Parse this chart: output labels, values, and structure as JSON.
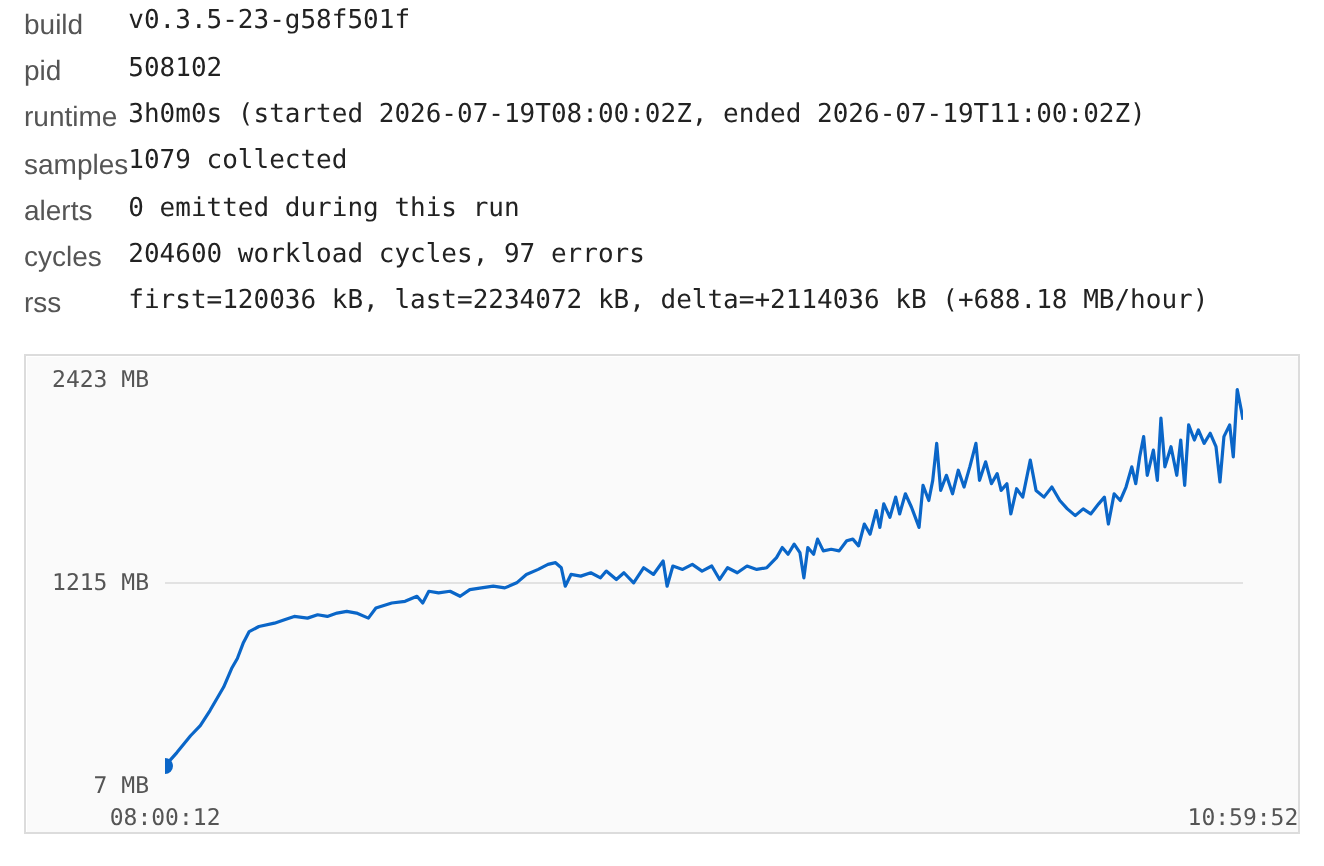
{
  "chart_data": {
    "type": "line",
    "annotations": [
      "build",
      "v0.3.5-23-g58f501f",
      "pid",
      "508102",
      "runtime",
      "3h0m0s (started 2026-07-19T08:00:02Z, ended 2026-07-19T11:00:02Z)",
      "samples",
      "1079 collected",
      "alerts",
      "0 emitted during this run",
      "cycles",
      "204600 workload cycles, 97 errors",
      "rss",
      "first=120036 kB, last=2234072 kB, delta=+2114036 kB (+688.18 MB/hour)"
    ],
    "xlim": [
      8.003,
      10.998
    ],
    "xticks": [
      {
        "value": 8.003333,
        "label": "08:00:12"
      },
      {
        "value": 10.997778,
        "label": "10:59:52"
      }
    ],
    "ylim": [
      7,
      2423
    ],
    "yticks": [
      {
        "value": 7,
        "label": "7 MB"
      },
      {
        "value": 1215,
        "label": "1215 MB"
      },
      {
        "value": 2423,
        "label": "2423 MB"
      }
    ],
    "grid": "y",
    "series": [
      {
        "color": "#0a66c8",
        "x": [
          8.003,
          8.036,
          8.074,
          8.101,
          8.128,
          8.166,
          8.188,
          8.204,
          8.22,
          8.237,
          8.264,
          8.307,
          8.335,
          8.362,
          8.399,
          8.427,
          8.454,
          8.481,
          8.508,
          8.535,
          8.568,
          8.589,
          8.633,
          8.67,
          8.703,
          8.719,
          8.736,
          8.763,
          8.795,
          8.823,
          8.85,
          8.882,
          8.915,
          8.947,
          8.98,
          9.007,
          9.04,
          9.067,
          9.088,
          9.104,
          9.115,
          9.131,
          9.158,
          9.186,
          9.213,
          9.229,
          9.257,
          9.278,
          9.305,
          9.333,
          9.36,
          9.387,
          9.398,
          9.414,
          9.441,
          9.468,
          9.495,
          9.522,
          9.544,
          9.566,
          9.593,
          9.62,
          9.647,
          9.675,
          9.702,
          9.718,
          9.734,
          9.751,
          9.767,
          9.778,
          9.789,
          9.805,
          9.816,
          9.832,
          9.854,
          9.876,
          9.897,
          9.914,
          9.93,
          9.946,
          9.962,
          9.979,
          9.989,
          10.0,
          10.017,
          10.033,
          10.044,
          10.06,
          10.077,
          10.098,
          10.109,
          10.125,
          10.136,
          10.147,
          10.158,
          10.174,
          10.191,
          10.207,
          10.223,
          10.239,
          10.256,
          10.266,
          10.283,
          10.299,
          10.315,
          10.326,
          10.342,
          10.353,
          10.369,
          10.386,
          10.407,
          10.423,
          10.445,
          10.467,
          10.489,
          10.51,
          10.532,
          10.554,
          10.575,
          10.597,
          10.613,
          10.624,
          10.64,
          10.657,
          10.673,
          10.689,
          10.7,
          10.711,
          10.722,
          10.732,
          10.749,
          10.76,
          10.77,
          10.781,
          10.798,
          10.814,
          10.825,
          10.836,
          10.847,
          10.863,
          10.874,
          10.89,
          10.907,
          10.923,
          10.934,
          10.945,
          10.961,
          10.971,
          10.982,
          10.993,
          10.998
        ],
        "values": [
          120,
          200,
          300,
          360,
          450,
          590,
          700,
          760,
          850,
          920,
          950,
          970,
          990,
          1010,
          1000,
          1020,
          1010,
          1030,
          1040,
          1030,
          1000,
          1060,
          1090,
          1100,
          1130,
          1090,
          1160,
          1150,
          1160,
          1130,
          1170,
          1180,
          1190,
          1180,
          1210,
          1260,
          1290,
          1320,
          1330,
          1300,
          1190,
          1260,
          1250,
          1270,
          1240,
          1280,
          1230,
          1270,
          1210,
          1300,
          1260,
          1340,
          1190,
          1310,
          1290,
          1320,
          1280,
          1310,
          1230,
          1300,
          1270,
          1310,
          1290,
          1300,
          1360,
          1420,
          1380,
          1440,
          1390,
          1240,
          1420,
          1380,
          1470,
          1400,
          1410,
          1400,
          1460,
          1470,
          1430,
          1560,
          1500,
          1640,
          1540,
          1680,
          1600,
          1720,
          1620,
          1740,
          1660,
          1540,
          1790,
          1700,
          1820,
          2040,
          1760,
          1850,
          1740,
          1880,
          1780,
          1900,
          2040,
          1820,
          1930,
          1800,
          1860,
          1760,
          1800,
          1620,
          1770,
          1720,
          1940,
          1760,
          1720,
          1780,
          1700,
          1650,
          1610,
          1650,
          1620,
          1680,
          1720,
          1560,
          1740,
          1700,
          1780,
          1900,
          1800,
          1960,
          2080,
          1850,
          2000,
          1820,
          2190,
          1900,
          2020,
          1850,
          2060,
          1790,
          2150,
          2060,
          2120,
          2040,
          2100,
          2020,
          1810,
          2080,
          2150,
          1960,
          2360,
          2240,
          2180
        ]
      },
      {
        "type": "scatter",
        "color": "#0a66c8",
        "x": [
          8.003
        ],
        "values": [
          120
        ]
      }
    ]
  }
}
